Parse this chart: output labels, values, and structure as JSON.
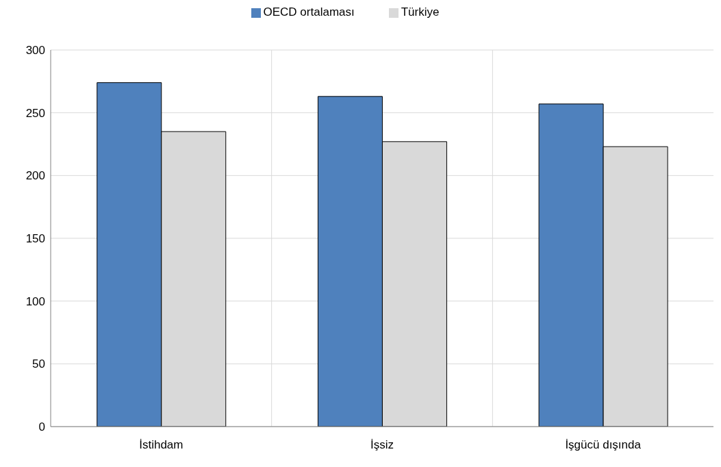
{
  "chart_data": {
    "type": "bar",
    "categories": [
      "İstihdam",
      "İşsiz",
      "İşgücü dışında"
    ],
    "series": [
      {
        "name": "OECD ortalaması",
        "color": "#4f81bd",
        "values": [
          274,
          263,
          257
        ]
      },
      {
        "name": "Türkiye",
        "color": "#d9d9d9",
        "values": [
          235,
          227,
          223
        ]
      }
    ],
    "ylim": [
      0,
      300
    ],
    "yticks": [
      0,
      50,
      100,
      150,
      200,
      250,
      300
    ],
    "grid": true,
    "legend": "top"
  }
}
